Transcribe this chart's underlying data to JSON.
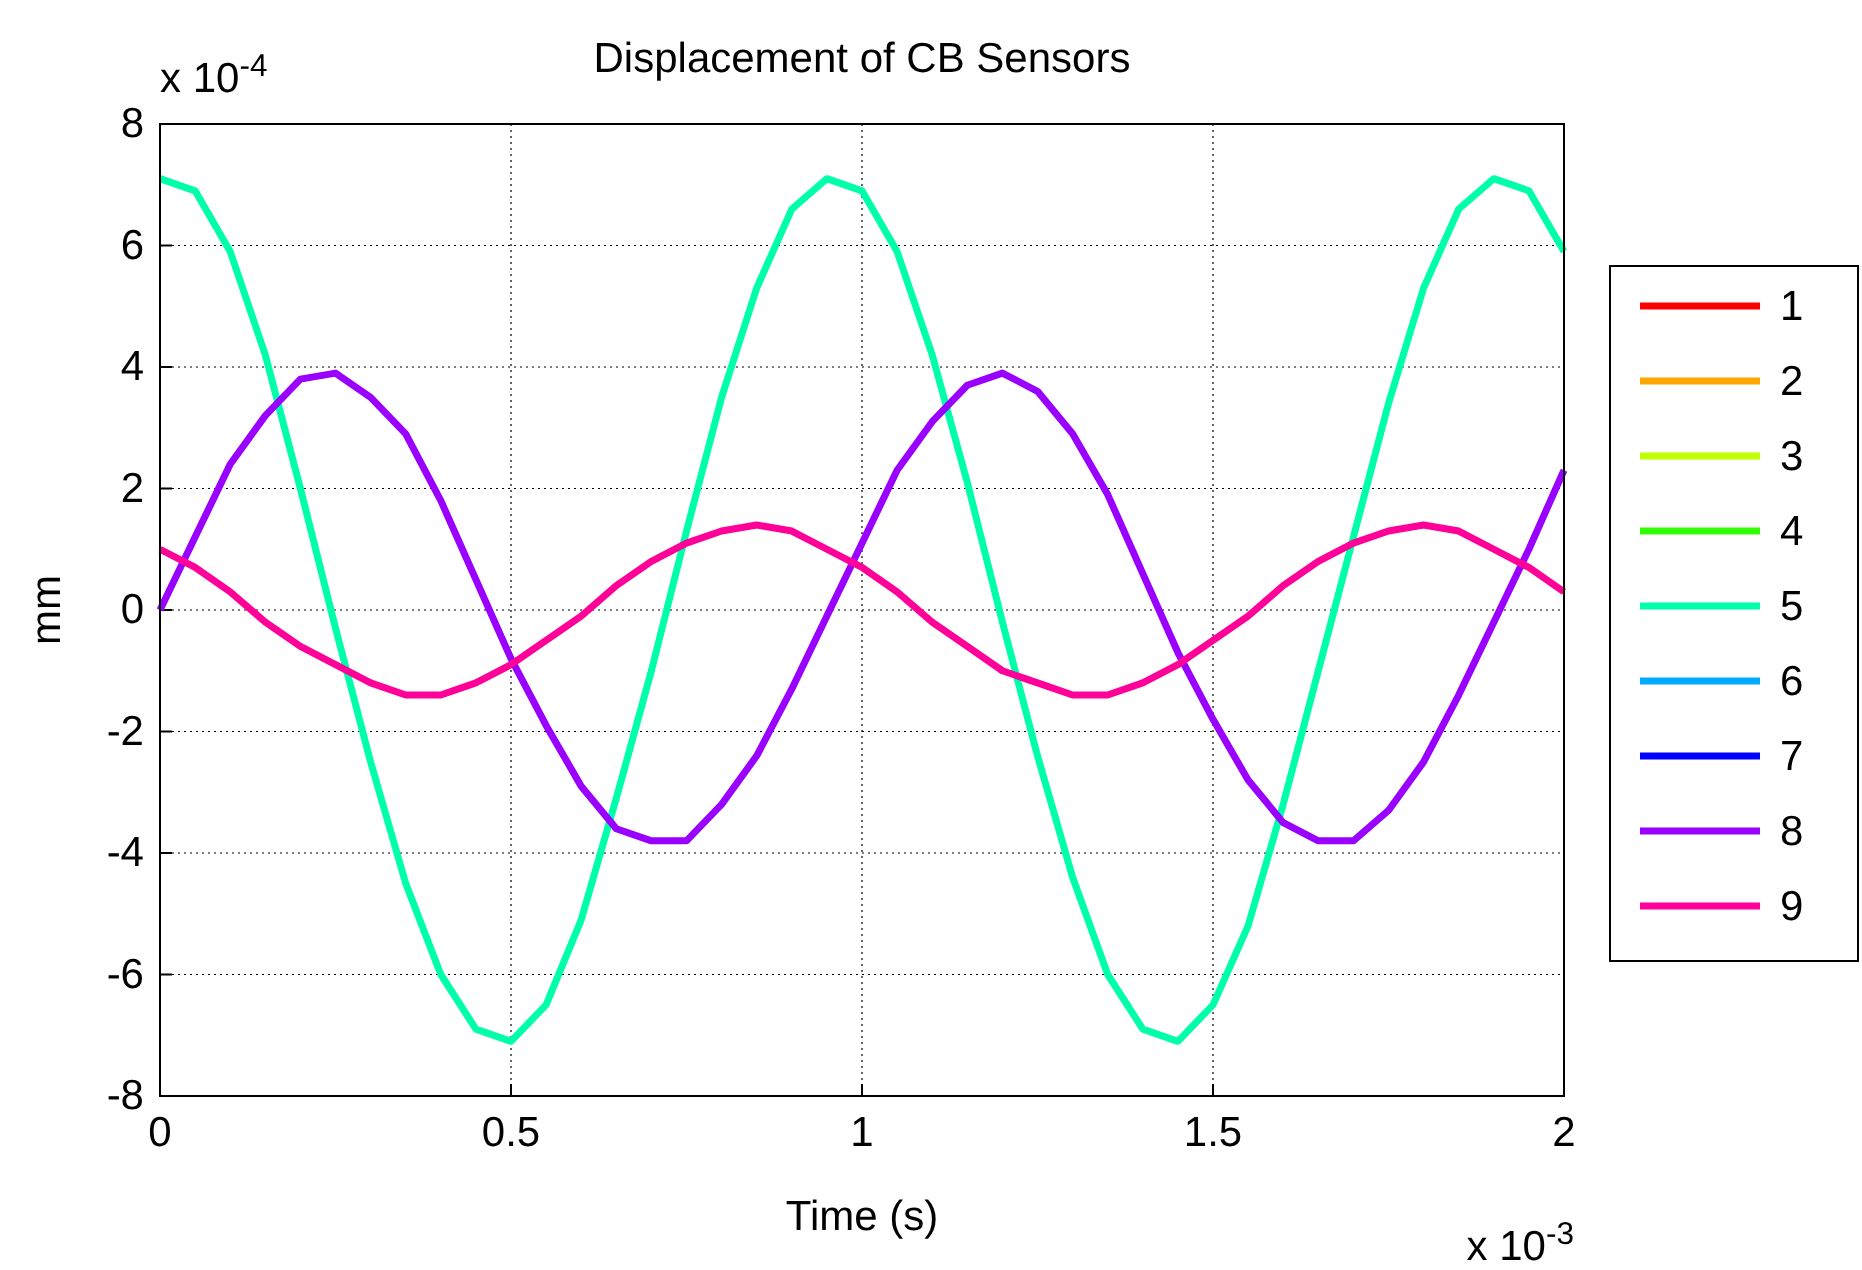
{
  "chart_data": {
    "type": "line",
    "title": "Displacement of CB Sensors",
    "xlabel": "Time (s)",
    "ylabel": "mm",
    "annotations": [
      "x 10$^{-4}$",
      "x 10$^{-3}$"
    ],
    "x": [
      0,
      0.05,
      0.1,
      0.15,
      0.2,
      0.25,
      0.3,
      0.35,
      0.4,
      0.45,
      0.5,
      0.55,
      0.6,
      0.65,
      0.7,
      0.75,
      0.8,
      0.85,
      0.9,
      0.95,
      1,
      1.05,
      1.1,
      1.15,
      1.2,
      1.25,
      1.3,
      1.35,
      1.4,
      1.45,
      1.5,
      1.55,
      1.6,
      1.65,
      1.7,
      1.75,
      1.8,
      1.85,
      1.9,
      1.95,
      2
    ],
    "series": [
      {
        "name": "1",
        "color": "#ff0000",
        "values": [
          null,
          null,
          null,
          null,
          null,
          null,
          null,
          null,
          null,
          null,
          null,
          null,
          null,
          null,
          null,
          null,
          null,
          null,
          null,
          null,
          null,
          null,
          null,
          null,
          null,
          null,
          null,
          null,
          null,
          null,
          null,
          null,
          null,
          null,
          null,
          null,
          null,
          null,
          null,
          null,
          null
        ]
      },
      {
        "name": "2",
        "color": "#ffa500",
        "values": [
          null,
          null,
          null,
          null,
          null,
          null,
          null,
          null,
          null,
          null,
          null,
          null,
          null,
          null,
          null,
          null,
          null,
          null,
          null,
          null,
          null,
          null,
          null,
          null,
          null,
          null,
          null,
          null,
          null,
          null,
          null,
          null,
          null,
          null,
          null,
          null,
          null,
          null,
          null,
          null,
          null
        ]
      },
      {
        "name": "3",
        "color": "#bfff00",
        "values": [
          null,
          null,
          null,
          null,
          null,
          null,
          null,
          null,
          null,
          null,
          null,
          null,
          null,
          null,
          null,
          null,
          null,
          null,
          null,
          null,
          null,
          null,
          null,
          null,
          null,
          null,
          null,
          null,
          null,
          null,
          null,
          null,
          null,
          null,
          null,
          null,
          null,
          null,
          null,
          null,
          null
        ]
      },
      {
        "name": "4",
        "color": "#33ff00",
        "values": [
          null,
          null,
          null,
          null,
          null,
          null,
          null,
          null,
          null,
          null,
          null,
          null,
          null,
          null,
          null,
          null,
          null,
          null,
          null,
          null,
          null,
          null,
          null,
          null,
          null,
          null,
          null,
          null,
          null,
          null,
          null,
          null,
          null,
          null,
          null,
          null,
          null,
          null,
          null,
          null,
          null
        ]
      },
      {
        "name": "5",
        "color": "#00ffaa",
        "values": [
          7.1,
          6.9,
          5.9,
          4.2,
          2.0,
          -0.3,
          -2.5,
          -4.5,
          -6.0,
          -6.9,
          -7.1,
          -6.5,
          -5.1,
          -3.1,
          -1.0,
          1.3,
          3.5,
          5.3,
          6.6,
          7.1,
          6.9,
          5.9,
          4.2,
          2.1,
          -0.2,
          -2.4,
          -4.4,
          -6.0,
          -6.9,
          -7.1,
          -6.5,
          -5.2,
          -3.2,
          -1.0,
          1.2,
          3.4,
          5.3,
          6.6,
          7.1,
          6.9,
          5.9
        ]
      },
      {
        "name": "6",
        "color": "#00aaff",
        "values": [
          null,
          null,
          null,
          null,
          null,
          null,
          null,
          null,
          null,
          null,
          null,
          null,
          null,
          null,
          null,
          null,
          null,
          null,
          null,
          null,
          null,
          null,
          null,
          null,
          null,
          null,
          null,
          null,
          null,
          null,
          null,
          null,
          null,
          null,
          null,
          null,
          null,
          null,
          null,
          null,
          null
        ]
      },
      {
        "name": "7",
        "color": "#0000ff",
        "values": [
          null,
          null,
          null,
          null,
          null,
          null,
          null,
          null,
          null,
          null,
          null,
          null,
          null,
          null,
          null,
          null,
          null,
          null,
          null,
          null,
          null,
          null,
          null,
          null,
          null,
          null,
          null,
          null,
          null,
          null,
          null,
          null,
          null,
          null,
          null,
          null,
          null,
          null,
          null,
          null,
          null
        ]
      },
      {
        "name": "8",
        "color": "#9900ff",
        "values": [
          0,
          1.2,
          2.4,
          3.2,
          3.8,
          3.9,
          3.5,
          2.9,
          1.8,
          0.5,
          -0.8,
          -1.9,
          -2.9,
          -3.6,
          -3.8,
          -3.8,
          -3.2,
          -2.4,
          -1.3,
          -0.1,
          1.1,
          2.3,
          3.1,
          3.7,
          3.9,
          3.6,
          2.9,
          1.9,
          0.6,
          -0.7,
          -1.8,
          -2.8,
          -3.5,
          -3.8,
          -3.8,
          -3.3,
          -2.5,
          -1.4,
          -0.2,
          1.0,
          2.3
        ]
      },
      {
        "name": "9",
        "color": "#ff0099",
        "values": [
          1.0,
          0.7,
          0.3,
          -0.2,
          -0.6,
          -0.9,
          -1.2,
          -1.4,
          -1.4,
          -1.2,
          -0.9,
          -0.5,
          -0.1,
          0.4,
          0.8,
          1.1,
          1.3,
          1.4,
          1.3,
          1.0,
          0.7,
          0.3,
          -0.2,
          -0.6,
          -1.0,
          -1.2,
          -1.4,
          -1.4,
          -1.2,
          -0.9,
          -0.5,
          -0.1,
          0.4,
          0.8,
          1.1,
          1.3,
          1.4,
          1.3,
          1.0,
          0.7,
          0.3
        ]
      }
    ],
    "xlim": [
      0,
      2
    ],
    "xticks": [
      0,
      0.5,
      1,
      1.5,
      2
    ],
    "ylim": [
      -8,
      8
    ],
    "yticks": [
      -8,
      -6,
      -4,
      -2,
      0,
      2,
      4,
      6,
      8
    ],
    "grid": true,
    "legend": "right",
    "marker": "none",
    "line_style": "solid"
  }
}
